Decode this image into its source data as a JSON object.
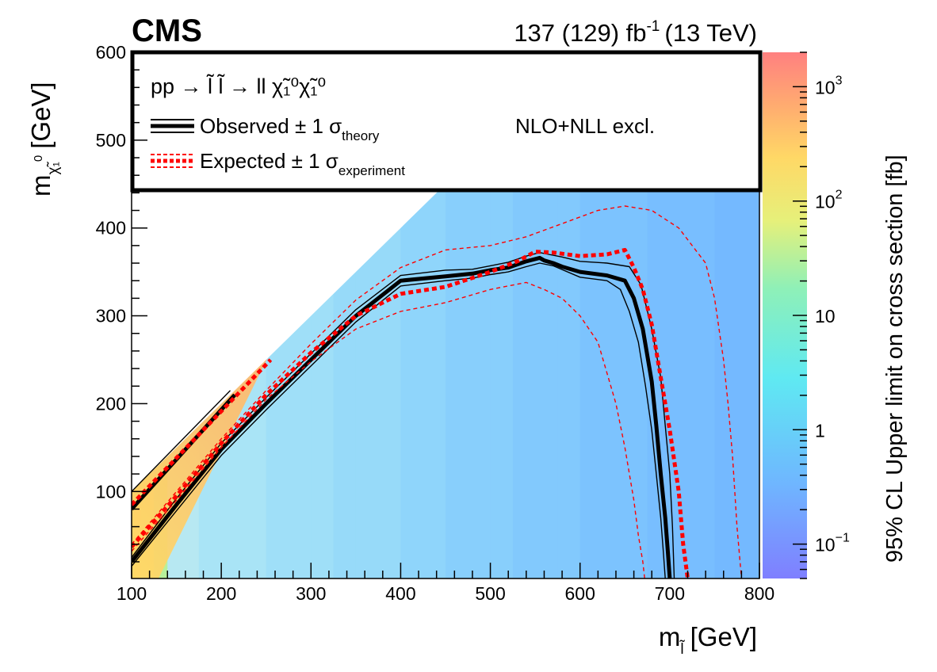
{
  "header": {
    "experiment": "CMS",
    "lumi_main": "137 (129) fb",
    "lumi_exp": "-1",
    "energy": "(13 TeV)"
  },
  "chart_data": {
    "type": "heatmap",
    "title": "",
    "xlabel": {
      "main": "m",
      "sub": "l̃",
      "unit": "[GeV]"
    },
    "ylabel": {
      "main": "m",
      "sub": "χ̃₁",
      "sup": "0",
      "unit": "[GeV]"
    },
    "zlabel": "95% CL Upper limit on cross section [fb]",
    "xlim": [
      100,
      800
    ],
    "ylim": [
      1,
      600
    ],
    "zlim": [
      0.05,
      2000
    ],
    "zscale": "log",
    "x_ticks": [
      100,
      200,
      300,
      400,
      500,
      600,
      700,
      800
    ],
    "y_ticks": [
      100,
      200,
      300,
      400,
      500,
      600
    ],
    "z_ticks": [
      {
        "value": 0.1,
        "base": "10",
        "exp": "−1"
      },
      {
        "value": 1,
        "base": "1",
        "exp": ""
      },
      {
        "value": 10,
        "base": "10",
        "exp": ""
      },
      {
        "value": 100,
        "base": "10",
        "exp": "2"
      },
      {
        "value": 1000,
        "base": "10",
        "exp": "3"
      }
    ],
    "colorscale": [
      "#7f7fff",
      "#6fb6ff",
      "#5fe9f2",
      "#8ef0b8",
      "#e6f07a",
      "#ffd866",
      "#ffab70",
      "#ff8080"
    ],
    "legend": {
      "process": "pp → l̃ l̃ → ll χ̃₁⁰χ̃₁⁰",
      "observed": {
        "label": "Observed ± 1 σ",
        "sub": "theory",
        "color": "#000000"
      },
      "expected": {
        "label": "Expected ± 1 σ",
        "sub": "experiment",
        "color": "#ff0000"
      },
      "note": "NLO+NLL excl.",
      "placement": "top"
    },
    "series": [
      {
        "name": "Observed",
        "style": "solid-thick",
        "color": "#000000",
        "x": [
          100,
          150,
          200,
          250,
          300,
          350,
          400,
          450,
          480,
          500,
          520,
          540,
          555,
          560,
          570,
          580,
          600,
          630,
          650,
          660,
          670,
          680,
          685,
          690,
          695,
          698,
          700
        ],
        "y": [
          20,
          85,
          148,
          200,
          250,
          300,
          340,
          345,
          348,
          352,
          355,
          362,
          366,
          363,
          360,
          356,
          350,
          346,
          340,
          320,
          285,
          225,
          175,
          120,
          70,
          30,
          1
        ]
      },
      {
        "name": "Observed upper",
        "style": "solid-thin",
        "color": "#000000",
        "x": [
          100,
          150,
          200,
          250,
          300,
          350,
          400,
          450,
          480,
          500,
          520,
          540,
          555,
          565,
          580,
          600,
          630,
          655,
          668,
          680,
          690,
          695,
          700,
          703,
          705
        ],
        "y": [
          25,
          92,
          155,
          207,
          257,
          307,
          346,
          352,
          353,
          357,
          361,
          368,
          372,
          370,
          367,
          362,
          360,
          356,
          335,
          285,
          230,
          175,
          120,
          60,
          1
        ]
      },
      {
        "name": "Observed lower",
        "style": "solid-thin",
        "color": "#000000",
        "x": [
          100,
          150,
          200,
          250,
          300,
          350,
          400,
          450,
          480,
          500,
          520,
          540,
          555,
          570,
          600,
          630,
          645,
          655,
          665,
          673,
          680,
          685,
          690,
          693,
          695
        ],
        "y": [
          15,
          78,
          141,
          193,
          243,
          293,
          334,
          340,
          343,
          347,
          350,
          356,
          360,
          357,
          344,
          340,
          330,
          305,
          270,
          220,
          170,
          120,
          70,
          30,
          1
        ]
      },
      {
        "name": "Observed diagonal",
        "style": "solid-thick",
        "color": "#000000",
        "x": [
          100,
          215
        ],
        "y": [
          80,
          210
        ]
      },
      {
        "name": "Observed diagonal upper",
        "style": "solid-thin",
        "color": "#000000",
        "x": [
          100,
          210
        ],
        "y": [
          100,
          215
        ]
      },
      {
        "name": "Expected",
        "style": "dashed-thick",
        "color": "#ff0000",
        "x": [
          100,
          150,
          200,
          250,
          300,
          350,
          400,
          450,
          500,
          530,
          550,
          570,
          600,
          630,
          650,
          660,
          670,
          680,
          690,
          700,
          710,
          715,
          720
        ],
        "y": [
          37,
          95,
          155,
          210,
          258,
          300,
          325,
          333,
          350,
          362,
          373,
          372,
          368,
          370,
          375,
          355,
          330,
          290,
          230,
          170,
          100,
          40,
          1
        ]
      },
      {
        "name": "Expected +1σ",
        "style": "dashed-thin",
        "color": "#ff0000",
        "x": [
          100,
          150,
          200,
          250,
          300,
          350,
          400,
          450,
          500,
          540,
          580,
          620,
          650,
          680,
          710,
          740,
          750,
          760,
          765,
          770,
          775,
          780
        ],
        "y": [
          40,
          100,
          160,
          215,
          268,
          318,
          355,
          375,
          380,
          390,
          405,
          420,
          425,
          420,
          400,
          360,
          320,
          250,
          200,
          140,
          60,
          1
        ]
      },
      {
        "name": "Expected −1σ",
        "style": "dashed-thin",
        "color": "#ff0000",
        "x": [
          100,
          150,
          200,
          250,
          300,
          350,
          400,
          450,
          500,
          540,
          560,
          580,
          600,
          620,
          640,
          650,
          660,
          665,
          670,
          672
        ],
        "y": [
          32,
          90,
          150,
          205,
          248,
          285,
          305,
          315,
          330,
          338,
          330,
          320,
          300,
          270,
          200,
          150,
          90,
          50,
          20,
          1
        ]
      },
      {
        "name": "Expected diagonal",
        "style": "dashed-thick",
        "color": "#ff0000",
        "x": [
          100,
          255
        ],
        "y": [
          85,
          250
        ]
      }
    ]
  }
}
